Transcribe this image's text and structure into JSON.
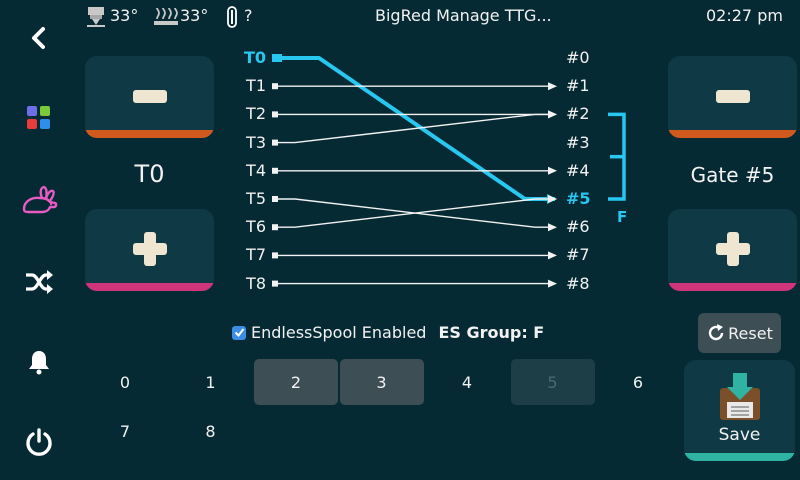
{
  "header": {
    "extruder_temp": "33°",
    "bed_temp": "33°",
    "filament_status": "?",
    "title": "BigRed Manage TTG...",
    "time": "02:27 pm"
  },
  "sidebar": {
    "items": [
      {
        "icon": "back-arrow-icon"
      },
      {
        "icon": "grid-icon"
      },
      {
        "icon": "rabbit-icon"
      },
      {
        "icon": "shuffle-icon"
      },
      {
        "icon": "bell-icon"
      },
      {
        "icon": "power-icon"
      }
    ]
  },
  "tool_selector": {
    "label": "T0"
  },
  "gate_selector": {
    "label": "Gate #5"
  },
  "mapping": {
    "tools": [
      "T0",
      "T1",
      "T2",
      "T3",
      "T4",
      "T5",
      "T6",
      "T7",
      "T8"
    ],
    "gates": [
      "#0",
      "#1",
      "#2",
      "#3",
      "#4",
      "#5",
      "#6",
      "#7",
      "#8"
    ],
    "map": [
      5,
      1,
      2,
      2,
      4,
      6,
      5,
      7,
      8
    ],
    "active_tool": 0,
    "active_gate": 5,
    "group_letter": "F",
    "group_gates": [
      2,
      5
    ]
  },
  "endless_spool": {
    "checked": true,
    "label": "EndlessSpool Enabled",
    "group_text": "ES Group: F"
  },
  "reset_label": "Reset",
  "save_label": "Save",
  "gate_grid": [
    {
      "label": "0",
      "state": "normal"
    },
    {
      "label": "1",
      "state": "normal"
    },
    {
      "label": "2",
      "state": "selected"
    },
    {
      "label": "3",
      "state": "selected"
    },
    {
      "label": "4",
      "state": "normal"
    },
    {
      "label": "5",
      "state": "disabled"
    },
    {
      "label": "6",
      "state": "normal"
    },
    {
      "label": "7",
      "state": "normal"
    },
    {
      "label": "8",
      "state": "normal"
    }
  ],
  "colors": {
    "background": "#062a33",
    "active": "#27c7ef",
    "minus_strip": "#d05a1e",
    "plus_strip": "#d0347a",
    "save_strip": "#2fb3a3"
  }
}
